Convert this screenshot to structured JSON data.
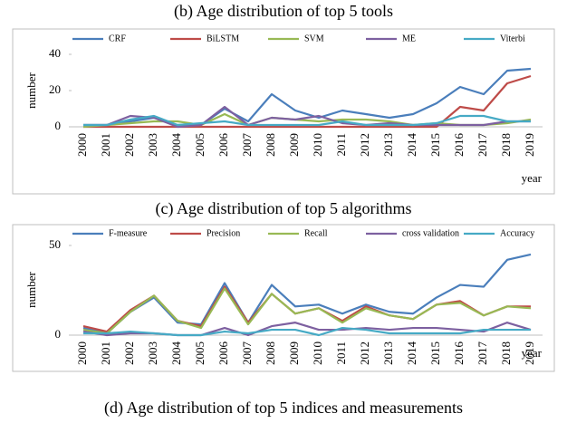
{
  "chart_data": [
    {
      "type": "line",
      "title": "(b) Age distribution of top 5 tools",
      "y_label": "number",
      "x_label": "year",
      "categories": [
        "2000",
        "2001",
        "2002",
        "2003",
        "2004",
        "2005",
        "2006",
        "2007",
        "2008",
        "2009",
        "2010",
        "2011",
        "2012",
        "2013",
        "2014",
        "2015",
        "2016",
        "2017",
        "2018",
        "2019"
      ],
      "ylim": [
        0,
        40
      ],
      "yticks": [
        0,
        20,
        40
      ],
      "grid": false,
      "series": [
        {
          "name": "CRF",
          "color": "#4a7ebb",
          "values": [
            1,
            1,
            3,
            5,
            1,
            1,
            10,
            3,
            18,
            9,
            5,
            9,
            7,
            5,
            7,
            13,
            22,
            18,
            31,
            32
          ]
        },
        {
          "name": "BiLSTM",
          "color": "#be4b48",
          "values": [
            0,
            0,
            0,
            0,
            0,
            0,
            0,
            0,
            0,
            0,
            0,
            0,
            0,
            0,
            0,
            0,
            11,
            9,
            24,
            28
          ]
        },
        {
          "name": "SVM",
          "color": "#98b954",
          "values": [
            0,
            1,
            2,
            3,
            3,
            1,
            7,
            1,
            5,
            4,
            3,
            4,
            4,
            3,
            1,
            2,
            1,
            1,
            2,
            4
          ]
        },
        {
          "name": "ME",
          "color": "#7d60a0",
          "values": [
            1,
            1,
            6,
            5,
            0,
            1,
            11,
            1,
            5,
            4,
            6,
            2,
            1,
            2,
            1,
            1,
            1,
            1,
            3,
            3
          ]
        },
        {
          "name": "Viterbi",
          "color": "#46aac5",
          "values": [
            1,
            1,
            4,
            6,
            1,
            2,
            3,
            1,
            1,
            1,
            1,
            3,
            1,
            1,
            1,
            2,
            6,
            6,
            3,
            3
          ]
        }
      ]
    },
    {
      "type": "line",
      "title": "(c) Age distribution of top 5 algorithms",
      "y_label": "number",
      "x_label": "year",
      "categories": [
        "2000",
        "2001",
        "2002",
        "2003",
        "2004",
        "2005",
        "2006",
        "2007",
        "2008",
        "2009",
        "2010",
        "2011",
        "2012",
        "2013",
        "2014",
        "2015",
        "2016",
        "2017",
        "2018",
        "2019"
      ],
      "ylim": [
        0,
        50
      ],
      "yticks": [
        0,
        50
      ],
      "grid": false,
      "series": [
        {
          "name": "F-measure",
          "color": "#4a7ebb",
          "values": [
            4,
            1,
            13,
            21,
            7,
            6,
            29,
            7,
            28,
            16,
            17,
            12,
            17,
            13,
            12,
            21,
            28,
            27,
            42,
            45
          ]
        },
        {
          "name": "Precision",
          "color": "#be4b48",
          "values": [
            5,
            2,
            14,
            22,
            8,
            5,
            27,
            7,
            23,
            12,
            15,
            8,
            16,
            11,
            9,
            17,
            19,
            11,
            16,
            16
          ]
        },
        {
          "name": "Recall",
          "color": "#98b954",
          "values": [
            3,
            1,
            13,
            22,
            8,
            4,
            26,
            6,
            23,
            12,
            15,
            7,
            15,
            11,
            9,
            17,
            18,
            11,
            16,
            15
          ]
        },
        {
          "name": "cross validation",
          "color": "#7d60a0",
          "values": [
            2,
            0,
            1,
            1,
            0,
            0,
            4,
            0,
            5,
            7,
            3,
            3,
            4,
            3,
            4,
            4,
            3,
            2,
            7,
            3
          ]
        },
        {
          "name": "Accuracy",
          "color": "#46aac5",
          "values": [
            1,
            1,
            2,
            1,
            0,
            0,
            2,
            1,
            3,
            3,
            0,
            4,
            3,
            1,
            1,
            1,
            1,
            3,
            3,
            3
          ]
        }
      ]
    }
  ],
  "caption": "(d) Age distribution of top 5 indices and measurements"
}
